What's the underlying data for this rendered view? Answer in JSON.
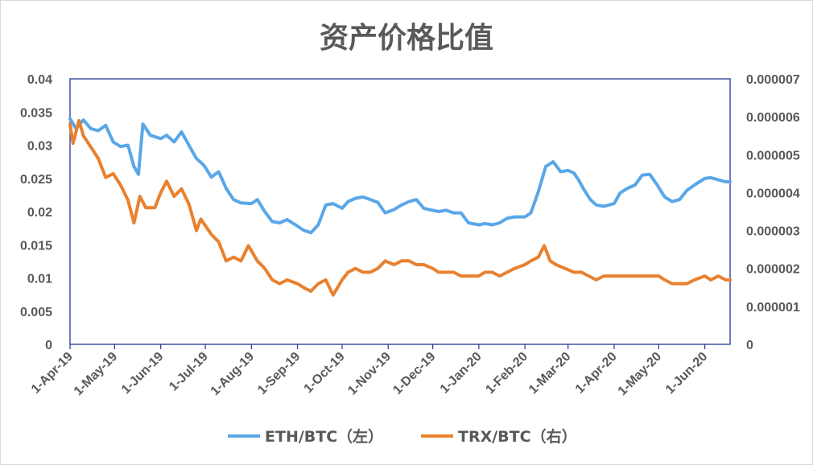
{
  "chart_data": {
    "type": "line",
    "title": "资产价格比值",
    "x_categories": [
      "1-Apr-19",
      "1-May-19",
      "1-Jun-19",
      "1-Jul-19",
      "1-Aug-19",
      "1-Sep-19",
      "1-Oct-19",
      "1-Nov-19",
      "1-Dec-19",
      "1-Jan-20",
      "1-Feb-20",
      "1-Mar-20",
      "1-Apr-20",
      "1-May-20",
      "1-Jun-20"
    ],
    "x_range": [
      "2019-04-01",
      "2020-06-18"
    ],
    "y_left": {
      "range": [
        0,
        0.04
      ],
      "ticks": [
        "0",
        "0.005",
        "0.01",
        "0.015",
        "0.02",
        "0.025",
        "0.03",
        "0.035",
        "0.04"
      ]
    },
    "y_right": {
      "range": [
        0,
        7e-06
      ],
      "ticks": [
        "0",
        "0.000001",
        "0.000002",
        "0.000003",
        "0.000004",
        "0.000005",
        "0.000006",
        "0.000007"
      ]
    },
    "grid": false,
    "legend": "bottom",
    "series": [
      {
        "name": "ETH/BTC（左）",
        "axis": "left",
        "color": "#5aa7e8",
        "points": [
          [
            "2019-04-01",
            0.034
          ],
          [
            "2019-04-05",
            0.0325
          ],
          [
            "2019-04-10",
            0.0338
          ],
          [
            "2019-04-15",
            0.0325
          ],
          [
            "2019-04-20",
            0.0322
          ],
          [
            "2019-04-25",
            0.033
          ],
          [
            "2019-04-30",
            0.0305
          ],
          [
            "2019-05-05",
            0.0298
          ],
          [
            "2019-05-10",
            0.03
          ],
          [
            "2019-05-14",
            0.0268
          ],
          [
            "2019-05-17",
            0.0256
          ],
          [
            "2019-05-20",
            0.0332
          ],
          [
            "2019-05-25",
            0.0315
          ],
          [
            "2019-06-01",
            0.031
          ],
          [
            "2019-06-05",
            0.0315
          ],
          [
            "2019-06-10",
            0.0305
          ],
          [
            "2019-06-15",
            0.032
          ],
          [
            "2019-06-20",
            0.03
          ],
          [
            "2019-06-25",
            0.028
          ],
          [
            "2019-06-30",
            0.027
          ],
          [
            "2019-07-05",
            0.0252
          ],
          [
            "2019-07-10",
            0.026
          ],
          [
            "2019-07-15",
            0.0235
          ],
          [
            "2019-07-20",
            0.0218
          ],
          [
            "2019-07-25",
            0.0213
          ],
          [
            "2019-08-01",
            0.0212
          ],
          [
            "2019-08-05",
            0.0218
          ],
          [
            "2019-08-10",
            0.02
          ],
          [
            "2019-08-15",
            0.0185
          ],
          [
            "2019-08-20",
            0.0183
          ],
          [
            "2019-08-25",
            0.0188
          ],
          [
            "2019-09-01",
            0.0178
          ],
          [
            "2019-09-05",
            0.0172
          ],
          [
            "2019-09-10",
            0.0168
          ],
          [
            "2019-09-15",
            0.018
          ],
          [
            "2019-09-20",
            0.021
          ],
          [
            "2019-09-25",
            0.0212
          ],
          [
            "2019-10-01",
            0.0205
          ],
          [
            "2019-10-05",
            0.0215
          ],
          [
            "2019-10-10",
            0.022
          ],
          [
            "2019-10-15",
            0.0222
          ],
          [
            "2019-10-20",
            0.0218
          ],
          [
            "2019-10-25",
            0.0214
          ],
          [
            "2019-10-30",
            0.0198
          ],
          [
            "2019-11-05",
            0.0203
          ],
          [
            "2019-11-10",
            0.021
          ],
          [
            "2019-11-15",
            0.0215
          ],
          [
            "2019-11-20",
            0.0218
          ],
          [
            "2019-11-25",
            0.0205
          ],
          [
            "2019-12-01",
            0.0202
          ],
          [
            "2019-12-05",
            0.02
          ],
          [
            "2019-12-10",
            0.0202
          ],
          [
            "2019-12-15",
            0.0198
          ],
          [
            "2019-12-20",
            0.0198
          ],
          [
            "2019-12-25",
            0.0183
          ],
          [
            "2020-01-01",
            0.018
          ],
          [
            "2020-01-05",
            0.0182
          ],
          [
            "2020-01-10",
            0.018
          ],
          [
            "2020-01-15",
            0.0183
          ],
          [
            "2020-01-20",
            0.019
          ],
          [
            "2020-01-25",
            0.0192
          ],
          [
            "2020-02-01",
            0.0192
          ],
          [
            "2020-02-05",
            0.0198
          ],
          [
            "2020-02-10",
            0.023
          ],
          [
            "2020-02-15",
            0.0268
          ],
          [
            "2020-02-20",
            0.0275
          ],
          [
            "2020-02-25",
            0.026
          ],
          [
            "2020-03-01",
            0.0262
          ],
          [
            "2020-03-05",
            0.0258
          ],
          [
            "2020-03-08",
            0.0248
          ],
          [
            "2020-03-12",
            0.0232
          ],
          [
            "2020-03-16",
            0.0218
          ],
          [
            "2020-03-20",
            0.021
          ],
          [
            "2020-03-25",
            0.0208
          ],
          [
            "2020-04-01",
            0.0212
          ],
          [
            "2020-04-05",
            0.0228
          ],
          [
            "2020-04-10",
            0.0235
          ],
          [
            "2020-04-15",
            0.024
          ],
          [
            "2020-04-20",
            0.0255
          ],
          [
            "2020-04-25",
            0.0256
          ],
          [
            "2020-04-30",
            0.024
          ],
          [
            "2020-05-05",
            0.0222
          ],
          [
            "2020-05-10",
            0.0215
          ],
          [
            "2020-05-15",
            0.0218
          ],
          [
            "2020-05-20",
            0.0232
          ],
          [
            "2020-05-25",
            0.024
          ],
          [
            "2020-06-01",
            0.025
          ],
          [
            "2020-06-05",
            0.0251
          ],
          [
            "2020-06-10",
            0.0248
          ],
          [
            "2020-06-15",
            0.0245
          ],
          [
            "2020-06-18",
            0.0245
          ]
        ]
      },
      {
        "name": "TRX/BTC（右）",
        "axis": "right",
        "color": "#e8812f",
        "points": [
          [
            "2019-04-01",
            5.8e-06
          ],
          [
            "2019-04-03",
            5.3e-06
          ],
          [
            "2019-04-07",
            5.9e-06
          ],
          [
            "2019-04-10",
            5.5e-06
          ],
          [
            "2019-04-15",
            5.2e-06
          ],
          [
            "2019-04-20",
            4.9e-06
          ],
          [
            "2019-04-25",
            4.4e-06
          ],
          [
            "2019-04-30",
            4.5e-06
          ],
          [
            "2019-05-05",
            4.2e-06
          ],
          [
            "2019-05-10",
            3.8e-06
          ],
          [
            "2019-05-14",
            3.2e-06
          ],
          [
            "2019-05-18",
            3.9e-06
          ],
          [
            "2019-05-22",
            3.6e-06
          ],
          [
            "2019-05-28",
            3.6e-06
          ],
          [
            "2019-06-01",
            4e-06
          ],
          [
            "2019-06-05",
            4.3e-06
          ],
          [
            "2019-06-10",
            3.9e-06
          ],
          [
            "2019-06-15",
            4.1e-06
          ],
          [
            "2019-06-20",
            3.7e-06
          ],
          [
            "2019-06-25",
            3e-06
          ],
          [
            "2019-06-28",
            3.3e-06
          ],
          [
            "2019-07-05",
            2.9e-06
          ],
          [
            "2019-07-10",
            2.7e-06
          ],
          [
            "2019-07-15",
            2.2e-06
          ],
          [
            "2019-07-20",
            2.3e-06
          ],
          [
            "2019-07-25",
            2.2e-06
          ],
          [
            "2019-07-30",
            2.6e-06
          ],
          [
            "2019-08-05",
            2.2e-06
          ],
          [
            "2019-08-10",
            2e-06
          ],
          [
            "2019-08-15",
            1.7e-06
          ],
          [
            "2019-08-20",
            1.6e-06
          ],
          [
            "2019-08-25",
            1.7e-06
          ],
          [
            "2019-09-01",
            1.6e-06
          ],
          [
            "2019-09-05",
            1.5e-06
          ],
          [
            "2019-09-10",
            1.4e-06
          ],
          [
            "2019-09-15",
            1.6e-06
          ],
          [
            "2019-09-20",
            1.7e-06
          ],
          [
            "2019-09-25",
            1.3e-06
          ],
          [
            "2019-10-01",
            1.7e-06
          ],
          [
            "2019-10-05",
            1.9e-06
          ],
          [
            "2019-10-10",
            2e-06
          ],
          [
            "2019-10-15",
            1.9e-06
          ],
          [
            "2019-10-20",
            1.9e-06
          ],
          [
            "2019-10-25",
            2e-06
          ],
          [
            "2019-10-30",
            2.2e-06
          ],
          [
            "2019-11-05",
            2.1e-06
          ],
          [
            "2019-11-10",
            2.2e-06
          ],
          [
            "2019-11-15",
            2.2e-06
          ],
          [
            "2019-11-20",
            2.1e-06
          ],
          [
            "2019-11-25",
            2.1e-06
          ],
          [
            "2019-12-01",
            2e-06
          ],
          [
            "2019-12-05",
            1.9e-06
          ],
          [
            "2019-12-10",
            1.9e-06
          ],
          [
            "2019-12-15",
            1.9e-06
          ],
          [
            "2019-12-20",
            1.8e-06
          ],
          [
            "2019-12-25",
            1.8e-06
          ],
          [
            "2020-01-01",
            1.8e-06
          ],
          [
            "2020-01-05",
            1.9e-06
          ],
          [
            "2020-01-10",
            1.9e-06
          ],
          [
            "2020-01-15",
            1.8e-06
          ],
          [
            "2020-01-20",
            1.9e-06
          ],
          [
            "2020-01-25",
            2e-06
          ],
          [
            "2020-02-01",
            2.1e-06
          ],
          [
            "2020-02-05",
            2.2e-06
          ],
          [
            "2020-02-10",
            2.3e-06
          ],
          [
            "2020-02-14",
            2.6e-06
          ],
          [
            "2020-02-18",
            2.2e-06
          ],
          [
            "2020-02-22",
            2.1e-06
          ],
          [
            "2020-02-28",
            2e-06
          ],
          [
            "2020-03-05",
            1.9e-06
          ],
          [
            "2020-03-10",
            1.9e-06
          ],
          [
            "2020-03-15",
            1.8e-06
          ],
          [
            "2020-03-20",
            1.7e-06
          ],
          [
            "2020-03-25",
            1.8e-06
          ],
          [
            "2020-04-01",
            1.8e-06
          ],
          [
            "2020-04-05",
            1.8e-06
          ],
          [
            "2020-04-10",
            1.8e-06
          ],
          [
            "2020-04-15",
            1.8e-06
          ],
          [
            "2020-04-20",
            1.8e-06
          ],
          [
            "2020-04-25",
            1.8e-06
          ],
          [
            "2020-05-01",
            1.8e-06
          ],
          [
            "2020-05-05",
            1.7e-06
          ],
          [
            "2020-05-10",
            1.6e-06
          ],
          [
            "2020-05-15",
            1.6e-06
          ],
          [
            "2020-05-20",
            1.6e-06
          ],
          [
            "2020-05-25",
            1.7e-06
          ],
          [
            "2020-06-01",
            1.8e-06
          ],
          [
            "2020-06-05",
            1.7e-06
          ],
          [
            "2020-06-10",
            1.8e-06
          ],
          [
            "2020-06-15",
            1.7e-06
          ],
          [
            "2020-06-18",
            1.7e-06
          ]
        ]
      }
    ]
  }
}
